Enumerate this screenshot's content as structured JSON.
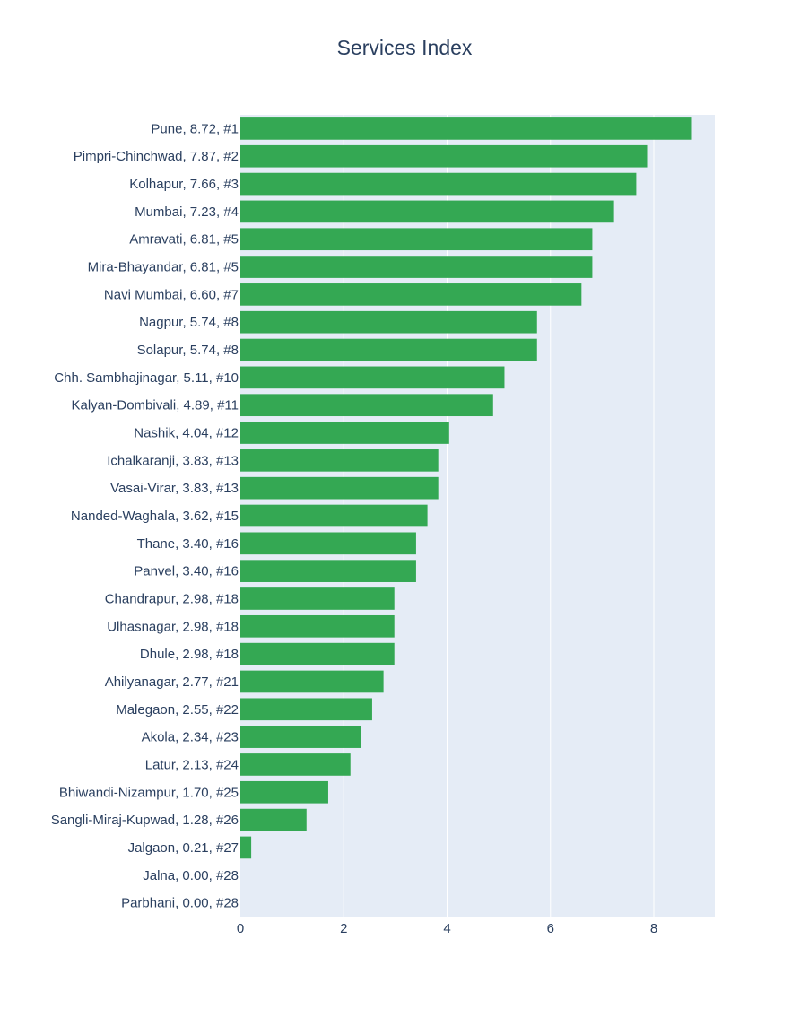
{
  "chart_data": {
    "type": "bar",
    "orientation": "horizontal",
    "title": "Services Index",
    "xlabel": "",
    "ylabel": "",
    "xlim": [
      0,
      9.18
    ],
    "x_ticks": [
      0,
      2,
      4,
      6,
      8
    ],
    "grid": true,
    "bar_color": "#34a853",
    "plot_background": "#e5ecf6",
    "categories": [
      "Pune, 8.72, #1",
      "Pimpri-Chinchwad, 7.87, #2",
      "Kolhapur, 7.66, #3",
      "Mumbai, 7.23, #4",
      "Amravati, 6.81, #5",
      "Mira-Bhayandar, 6.81, #5",
      "Navi Mumbai, 6.60, #7",
      "Nagpur, 5.74, #8",
      "Solapur, 5.74, #8",
      "Chh. Sambhajinagar, 5.11, #10",
      "Kalyan-Dombivali, 4.89, #11",
      "Nashik, 4.04, #12",
      "Ichalkaranji, 3.83, #13",
      "Vasai-Virar, 3.83, #13",
      "Nanded-Waghala, 3.62, #15",
      "Thane, 3.40, #16",
      "Panvel, 3.40, #16",
      "Chandrapur, 2.98, #18",
      "Ulhasnagar, 2.98, #18",
      "Dhule, 2.98, #18",
      "Ahilyanagar, 2.77, #21",
      "Malegaon, 2.55, #22",
      "Akola, 2.34, #23",
      "Latur, 2.13, #24",
      "Bhiwandi-Nizampur, 1.70, #25",
      "Sangli-Miraj-Kupwad, 1.28, #26",
      "Jalgaon, 0.21, #27",
      "Jalna, 0.00, #28",
      "Parbhani, 0.00, #28"
    ],
    "values": [
      8.72,
      7.87,
      7.66,
      7.23,
      6.81,
      6.81,
      6.6,
      5.74,
      5.74,
      5.11,
      4.89,
      4.04,
      3.83,
      3.83,
      3.62,
      3.4,
      3.4,
      2.98,
      2.98,
      2.98,
      2.77,
      2.55,
      2.34,
      2.13,
      1.7,
      1.28,
      0.21,
      0.0,
      0.0
    ]
  }
}
